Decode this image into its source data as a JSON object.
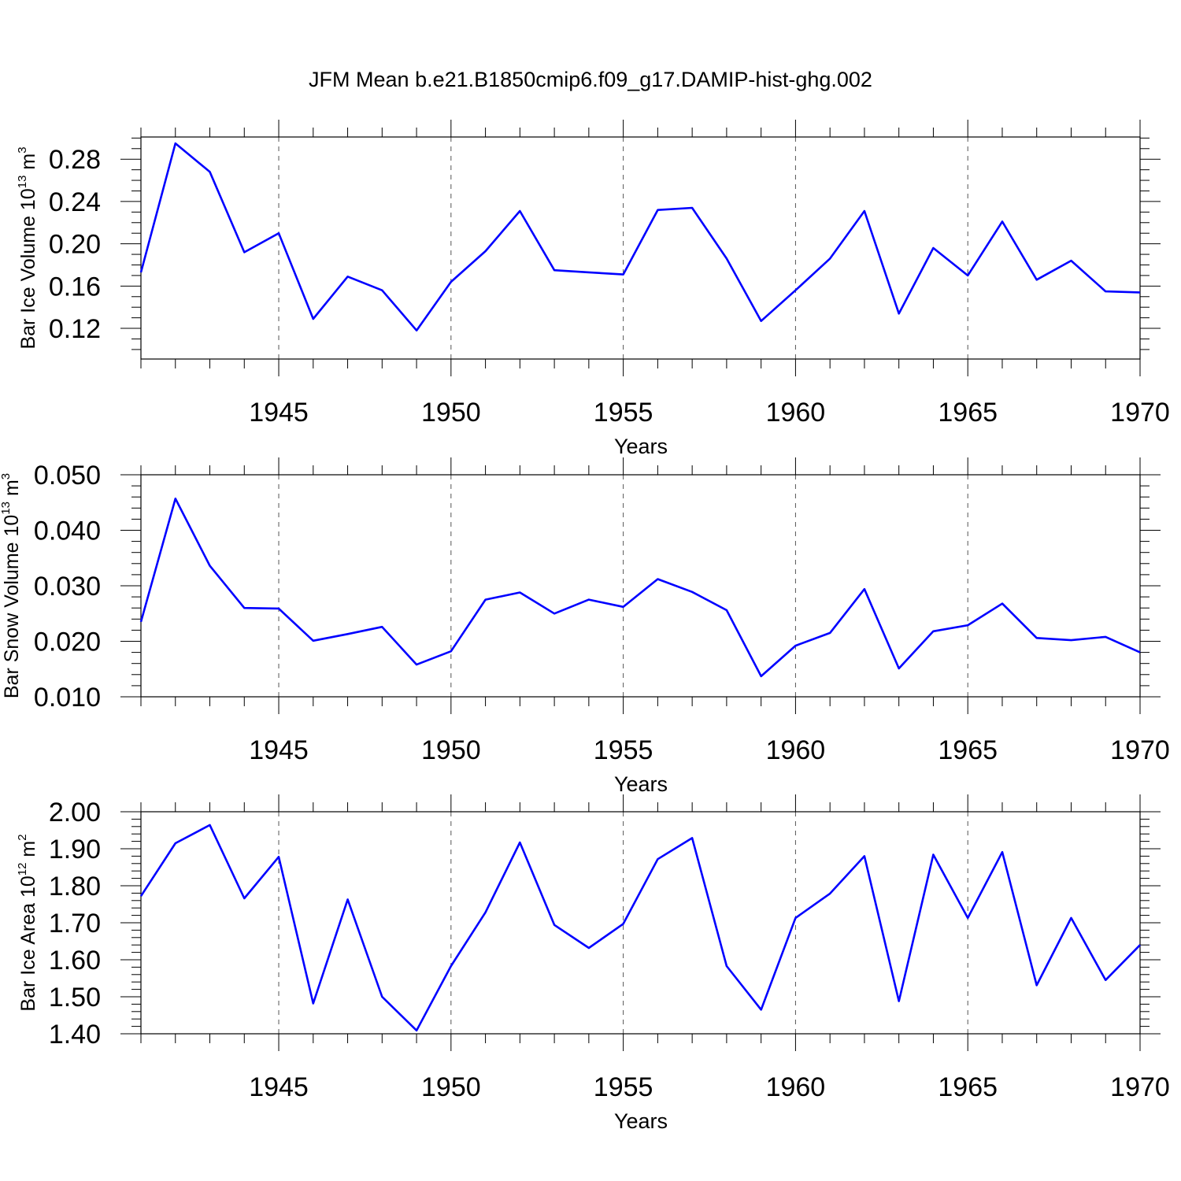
{
  "title": "JFM Mean b.e21.B1850cmip6.f09_g17.DAMIP-hist-ghg.002",
  "line_color": "#0000ff",
  "chart_data": [
    {
      "type": "line",
      "series_name": "Bar Ice Volume",
      "ylabel": {
        "main": "Bar Ice Volume 10",
        "exp": "13",
        "unit": " m",
        "unit_exp": "3"
      },
      "xlabel": "Years",
      "xlim": [
        1941,
        1970
      ],
      "ylim": [
        0.091,
        0.301
      ],
      "x_ticks": [
        1945,
        1950,
        1955,
        1960,
        1965,
        1970
      ],
      "x_tick_labels": [
        "1945",
        "1950",
        "1955",
        "1960",
        "1965",
        "1970"
      ],
      "y_ticks": [
        0.12,
        0.16,
        0.2,
        0.24,
        0.28
      ],
      "y_tick_labels": [
        "0.12",
        "0.16",
        "0.20",
        "0.24",
        "0.28"
      ],
      "y_minor_step": 0.01,
      "x": [
        1941,
        1942,
        1943,
        1944,
        1945,
        1946,
        1947,
        1948,
        1949,
        1950,
        1951,
        1952,
        1953,
        1954,
        1955,
        1956,
        1957,
        1958,
        1959,
        1960,
        1961,
        1962,
        1963,
        1964,
        1965,
        1966,
        1967,
        1968,
        1969,
        1970
      ],
      "values": [
        0.173,
        0.295,
        0.268,
        0.192,
        0.21,
        0.129,
        0.169,
        0.156,
        0.118,
        0.164,
        0.193,
        0.231,
        0.175,
        0.173,
        0.171,
        0.232,
        0.234,
        0.186,
        0.127,
        0.156,
        0.186,
        0.231,
        0.134,
        0.196,
        0.17,
        0.221,
        0.166,
        0.184,
        0.155,
        0.154
      ]
    },
    {
      "type": "line",
      "series_name": "Bar Snow Volume",
      "ylabel": {
        "main": "Bar Snow Volume 10",
        "exp": "13",
        "unit": " m",
        "unit_exp": "3"
      },
      "xlabel": "Years",
      "xlim": [
        1941,
        1970
      ],
      "ylim": [
        0.01,
        0.05
      ],
      "x_ticks": [
        1945,
        1950,
        1955,
        1960,
        1965,
        1970
      ],
      "x_tick_labels": [
        "1945",
        "1950",
        "1955",
        "1960",
        "1965",
        "1970"
      ],
      "y_ticks": [
        0.01,
        0.02,
        0.03,
        0.04,
        0.05
      ],
      "y_tick_labels": [
        "0.010",
        "0.020",
        "0.030",
        "0.040",
        "0.050"
      ],
      "y_minor_step": 0.002,
      "x": [
        1941,
        1942,
        1943,
        1944,
        1945,
        1946,
        1947,
        1948,
        1949,
        1950,
        1951,
        1952,
        1953,
        1954,
        1955,
        1956,
        1957,
        1958,
        1959,
        1960,
        1961,
        1962,
        1963,
        1964,
        1965,
        1966,
        1967,
        1968,
        1969,
        1970
      ],
      "values": [
        0.0235,
        0.0457,
        0.0336,
        0.026,
        0.0259,
        0.0201,
        0.0213,
        0.0226,
        0.0158,
        0.0182,
        0.0275,
        0.0288,
        0.025,
        0.0275,
        0.0262,
        0.0312,
        0.0289,
        0.0256,
        0.0137,
        0.0192,
        0.0215,
        0.0294,
        0.0151,
        0.0218,
        0.0229,
        0.0268,
        0.0206,
        0.0202,
        0.0208,
        0.018
      ]
    },
    {
      "type": "line",
      "series_name": "Bar Ice Area",
      "ylabel": {
        "main": "Bar Ice Area 10",
        "exp": "12",
        "unit": " m",
        "unit_exp": "2"
      },
      "xlabel": "Years",
      "xlim": [
        1941,
        1970
      ],
      "ylim": [
        1.4,
        2.0
      ],
      "x_ticks": [
        1945,
        1950,
        1955,
        1960,
        1965,
        1970
      ],
      "x_tick_labels": [
        "1945",
        "1950",
        "1955",
        "1960",
        "1965",
        "1970"
      ],
      "y_ticks": [
        1.4,
        1.5,
        1.6,
        1.7,
        1.8,
        1.9,
        2.0
      ],
      "y_tick_labels": [
        "1.40",
        "1.50",
        "1.60",
        "1.70",
        "1.80",
        "1.90",
        "2.00"
      ],
      "y_minor_step": 0.02,
      "x": [
        1941,
        1942,
        1943,
        1944,
        1945,
        1946,
        1947,
        1948,
        1949,
        1950,
        1951,
        1952,
        1953,
        1954,
        1955,
        1956,
        1957,
        1958,
        1959,
        1960,
        1961,
        1962,
        1963,
        1964,
        1965,
        1966,
        1967,
        1968,
        1969,
        1970
      ],
      "values": [
        1.772,
        1.915,
        1.964,
        1.766,
        1.878,
        1.482,
        1.763,
        1.5,
        1.409,
        1.583,
        1.728,
        1.917,
        1.694,
        1.632,
        1.697,
        1.872,
        1.929,
        1.583,
        1.465,
        1.713,
        1.779,
        1.88,
        1.488,
        1.884,
        1.713,
        1.891,
        1.531,
        1.713,
        1.545,
        1.64
      ]
    }
  ]
}
